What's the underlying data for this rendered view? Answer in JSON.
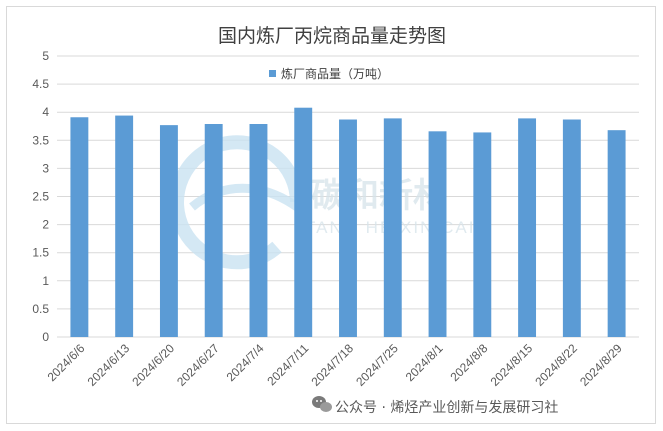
{
  "colors": {
    "bar": "#5b9bd5",
    "grid": "#d9d9d9",
    "axis_text": "#595959",
    "title_text": "#404040"
  },
  "logo": {
    "text_cn": "碳和新材",
    "text_en": "TANG HE XIN CAI"
  },
  "watermark": {
    "icon": "wechat-icon",
    "text": "公众号 · 烯烃产业创新与发展研习社"
  },
  "chart_data": {
    "type": "bar",
    "title": "国内炼厂丙烷商品量走势图",
    "xlabel": "",
    "ylabel": "",
    "ylim": [
      0,
      5
    ],
    "y_ticks": [
      "0",
      "0.5",
      "1",
      "1.5",
      "2",
      "2.5",
      "3",
      "3.5",
      "4",
      "4.5",
      "5"
    ],
    "grid": true,
    "legend_position": "top",
    "categories": [
      "2024/6/6",
      "2024/6/13",
      "2024/6/20",
      "2024/6/27",
      "2024/7/4",
      "2024/7/11",
      "2024/7/18",
      "2024/7/25",
      "2024/8/1",
      "2024/8/8",
      "2024/8/15",
      "2024/8/22",
      "2024/8/29"
    ],
    "series": [
      {
        "name": "炼厂商品量（万吨）",
        "values": [
          3.91,
          3.94,
          3.77,
          3.79,
          3.79,
          4.08,
          3.87,
          3.89,
          3.66,
          3.64,
          3.89,
          3.87,
          3.68
        ]
      }
    ]
  }
}
